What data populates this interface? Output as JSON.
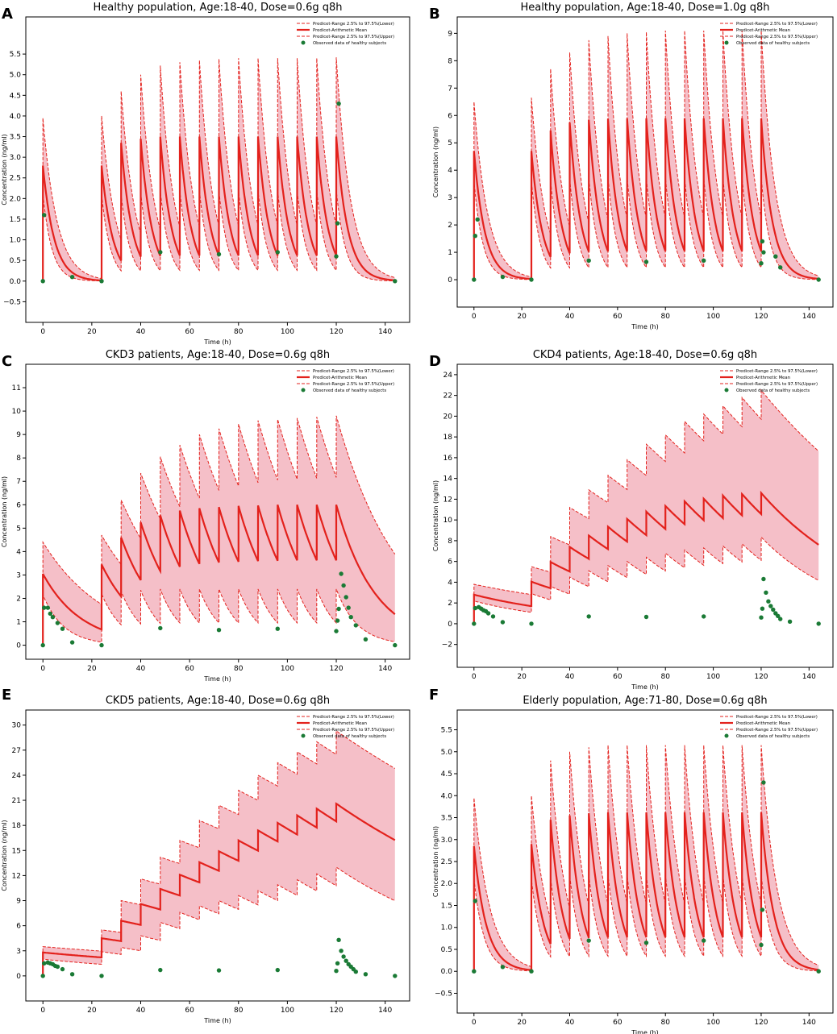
{
  "figure": {
    "series_names": {
      "lower": "Predicet-Range 2.5% to 97.5%(Lower)",
      "mean": "Predicet-Arithmetic Mean",
      "upper": "Predicet-Range 2.5% to 97.5%(Upper)",
      "observed": "Observed data of healthy subjects"
    },
    "colors": {
      "mean": "#e3211c",
      "band": "#f5bfc8",
      "band_edge": "#e3211c",
      "observed": "#1a7a35",
      "axis": "#000000"
    },
    "xlabel": "Time (h)",
    "ylabel": "Concentration (ng/ml)"
  },
  "chart_data": [
    {
      "type": "line",
      "panel": "A",
      "title": "Healthy population, Age:18-40, Dose=0.6g q8h",
      "xlim": [
        -7,
        150
      ],
      "ylim": [
        -1.0,
        6.4
      ],
      "xticks": [
        0,
        20,
        40,
        60,
        80,
        100,
        120,
        140
      ],
      "yticks": [
        -0.5,
        0.0,
        0.5,
        1.0,
        1.5,
        2.0,
        2.5,
        3.0,
        3.5,
        4.0,
        4.5,
        5.0,
        5.5
      ],
      "ytick_labels": [
        "−0.5",
        "0.0",
        "0.5",
        "1.0",
        "1.5",
        "2.0",
        "2.5",
        "3.0",
        "3.5",
        "4.0",
        "4.5",
        "5.0",
        "5.5"
      ],
      "dose_times": [
        0,
        24,
        32,
        40,
        48,
        56,
        64,
        72,
        80,
        88,
        96,
        104,
        112,
        120
      ],
      "mean_peaks": [
        2.8,
        2.8,
        3.35,
        3.45,
        3.5,
        3.5,
        3.5,
        3.5,
        3.5,
        3.5,
        3.5,
        3.5,
        3.5,
        3.5
      ],
      "lower_peaks": [
        2.1,
        2.1,
        2.1,
        2.15,
        2.2,
        2.2,
        2.2,
        2.2,
        2.2,
        2.2,
        2.2,
        2.2,
        2.2,
        2.2
      ],
      "upper_peaks": [
        3.95,
        4.0,
        4.6,
        5.0,
        5.22,
        5.3,
        5.35,
        5.38,
        5.4,
        5.4,
        5.4,
        5.4,
        5.4,
        5.42
      ],
      "mean_half_life": 3.2,
      "lower_half_life": 2.6,
      "upper_half_life": 4.0,
      "observed_x": [
        0,
        0.5,
        12,
        24,
        48,
        72,
        96,
        120,
        120.5,
        121,
        144
      ],
      "observed_y": [
        0.0,
        1.6,
        0.1,
        0.0,
        0.7,
        0.65,
        0.7,
        0.6,
        1.4,
        4.3,
        0.0
      ]
    },
    {
      "type": "line",
      "panel": "B",
      "title": "Healthy population, Age:18-40, Dose=1.0g q8h",
      "xlim": [
        -7,
        150
      ],
      "ylim": [
        -1.0,
        9.6
      ],
      "xticks": [
        0,
        20,
        40,
        60,
        80,
        100,
        120,
        140
      ],
      "yticks": [
        0,
        1,
        2,
        3,
        4,
        5,
        6,
        7,
        8,
        9
      ],
      "ytick_labels": [
        "0",
        "1",
        "2",
        "3",
        "4",
        "5",
        "6",
        "7",
        "8",
        "9"
      ],
      "dose_times": [
        0,
        24,
        32,
        40,
        48,
        56,
        64,
        72,
        80,
        88,
        96,
        104,
        112,
        120
      ],
      "mean_peaks": [
        4.7,
        4.7,
        5.45,
        5.75,
        5.85,
        5.88,
        5.9,
        5.9,
        5.9,
        5.9,
        5.9,
        5.9,
        5.9,
        5.9
      ],
      "lower_peaks": [
        3.6,
        3.6,
        3.65,
        3.7,
        3.75,
        3.75,
        3.75,
        3.75,
        3.75,
        3.75,
        3.75,
        3.75,
        3.75,
        3.75
      ],
      "upper_peaks": [
        6.5,
        6.65,
        7.7,
        8.3,
        8.75,
        8.9,
        9.0,
        9.05,
        9.1,
        9.1,
        9.1,
        9.1,
        9.1,
        9.1
      ],
      "mean_half_life": 3.2,
      "lower_half_life": 2.6,
      "upper_half_life": 4.0,
      "observed_x": [
        0,
        0.5,
        1.5,
        12,
        24,
        48,
        72,
        96,
        120,
        120.5,
        121,
        126,
        128,
        144
      ],
      "observed_y": [
        0.0,
        1.6,
        2.2,
        0.1,
        0.0,
        0.7,
        0.65,
        0.7,
        0.6,
        1.4,
        1.0,
        0.85,
        0.45,
        0.0
      ]
    },
    {
      "type": "line",
      "panel": "C",
      "title": "CKD3 patients, Age:18-40, Dose=0.6g q8h",
      "xlim": [
        -7,
        150
      ],
      "ylim": [
        -0.6,
        12.0
      ],
      "xticks": [
        0,
        20,
        40,
        60,
        80,
        100,
        120,
        140
      ],
      "yticks": [
        0,
        1,
        2,
        3,
        4,
        5,
        6,
        7,
        8,
        9,
        10,
        11
      ],
      "ytick_labels": [
        "0",
        "1",
        "2",
        "3",
        "4",
        "5",
        "6",
        "7",
        "8",
        "9",
        "10",
        "11"
      ],
      "dose_times": [
        0,
        24,
        32,
        40,
        48,
        56,
        64,
        72,
        80,
        88,
        96,
        104,
        112,
        120
      ],
      "mean_peaks": [
        3.05,
        3.45,
        4.6,
        5.25,
        5.55,
        5.75,
        5.85,
        5.9,
        5.95,
        5.97,
        6.0,
        6.0,
        6.0,
        6.0
      ],
      "lower_peaks": [
        2.15,
        2.2,
        2.3,
        2.35,
        2.4,
        2.4,
        2.4,
        2.4,
        2.4,
        2.4,
        2.4,
        2.4,
        2.4,
        2.4
      ],
      "upper_peaks": [
        4.4,
        4.7,
        6.2,
        7.35,
        8.05,
        8.55,
        9.0,
        9.25,
        9.45,
        9.6,
        9.65,
        9.7,
        9.75,
        9.8
      ],
      "mean_half_life": 11,
      "lower_half_life": 6,
      "upper_half_life": 18,
      "observed_x": [
        0,
        0.5,
        2,
        3,
        4,
        6,
        8,
        12,
        24,
        48,
        72,
        96,
        120,
        120.5,
        121,
        122,
        123,
        124,
        125,
        126,
        128,
        132,
        144
      ],
      "observed_y": [
        0.0,
        1.6,
        1.6,
        1.35,
        1.2,
        0.95,
        0.7,
        0.12,
        0.0,
        0.73,
        0.65,
        0.7,
        0.6,
        1.05,
        1.55,
        3.05,
        2.55,
        2.05,
        1.6,
        1.2,
        0.85,
        0.25,
        0.0
      ]
    },
    {
      "type": "line",
      "panel": "D",
      "title": "CKD4 patients, Age:18-40, Dose=0.6g q8h",
      "xlim": [
        -7,
        150
      ],
      "ylim": [
        -4.2,
        25.0
      ],
      "xticks": [
        0,
        20,
        40,
        60,
        80,
        100,
        120,
        140
      ],
      "yticks": [
        -2,
        0,
        2,
        4,
        6,
        8,
        10,
        12,
        14,
        16,
        18,
        20,
        22,
        24
      ],
      "ytick_labels": [
        "−2",
        "0",
        "2",
        "4",
        "6",
        "8",
        "10",
        "12",
        "14",
        "16",
        "18",
        "20",
        "22",
        "24"
      ],
      "dose_times": [
        0,
        24,
        32,
        40,
        48,
        56,
        64,
        72,
        80,
        88,
        96,
        104,
        112,
        120
      ],
      "mean_peaks": [
        2.8,
        4.05,
        5.95,
        7.4,
        8.5,
        9.35,
        10.1,
        10.8,
        11.35,
        11.8,
        12.05,
        12.35,
        12.5,
        12.6
      ],
      "lower_peaks": [
        2.2,
        2.9,
        3.6,
        4.5,
        5.1,
        5.6,
        6.0,
        6.4,
        6.8,
        7.1,
        7.3,
        7.5,
        7.7,
        8.35
      ],
      "upper_peaks": [
        3.8,
        5.5,
        8.4,
        11.2,
        12.9,
        14.3,
        15.8,
        17.3,
        18.2,
        19.5,
        20.2,
        21.0,
        21.8,
        22.5
      ],
      "mean_half_life": 33,
      "lower_half_life": 24,
      "upper_half_life": 55,
      "observed_x": [
        0,
        0.5,
        2,
        3,
        4,
        5,
        6,
        8,
        12,
        24,
        48,
        72,
        96,
        120,
        120.5,
        121,
        122,
        123,
        124,
        125,
        126,
        127,
        128,
        132,
        144
      ],
      "observed_y": [
        0.0,
        1.5,
        1.6,
        1.45,
        1.3,
        1.2,
        1.0,
        0.7,
        0.15,
        0.0,
        0.7,
        0.65,
        0.7,
        0.6,
        1.45,
        4.3,
        3.0,
        2.15,
        1.7,
        1.35,
        1.0,
        0.75,
        0.45,
        0.2,
        0.0
      ]
    },
    {
      "type": "line",
      "panel": "E",
      "title": "CKD5 patients, Age:18-40, Dose=0.6g q8h",
      "xlim": [
        -7,
        150
      ],
      "ylim": [
        -3.0,
        31.8
      ],
      "xticks": [
        0,
        20,
        40,
        60,
        80,
        100,
        120,
        140
      ],
      "yticks": [
        0,
        3,
        6,
        9,
        12,
        15,
        18,
        21,
        24,
        27,
        30
      ],
      "ytick_labels": [
        "0",
        "3",
        "6",
        "9",
        "12",
        "15",
        "18",
        "21",
        "24",
        "27",
        "30"
      ],
      "dose_times": [
        0,
        24,
        32,
        40,
        48,
        56,
        64,
        72,
        80,
        88,
        96,
        104,
        112,
        120
      ],
      "mean_peaks": [
        2.8,
        4.5,
        6.6,
        8.6,
        10.4,
        12.1,
        13.6,
        14.9,
        16.2,
        17.4,
        18.3,
        19.2,
        20.0,
        20.6
      ],
      "lower_peaks": [
        2.0,
        2.9,
        3.4,
        4.8,
        6.4,
        7.6,
        8.4,
        9.0,
        9.6,
        10.2,
        10.9,
        11.5,
        12.2,
        13.0
      ],
      "upper_peaks": [
        3.5,
        5.5,
        9.0,
        11.6,
        14.2,
        16.2,
        18.6,
        20.4,
        22.2,
        24.0,
        25.5,
        26.8,
        28.0,
        29.3
      ],
      "mean_half_life": 70,
      "lower_half_life": 45,
      "upper_half_life": 100,
      "observed_x": [
        0,
        0.5,
        2,
        3,
        4,
        5,
        6,
        8,
        12,
        24,
        48,
        72,
        96,
        120,
        120.5,
        121,
        122,
        123,
        124,
        125,
        126,
        127,
        128,
        132,
        144
      ],
      "observed_y": [
        0.0,
        1.5,
        1.6,
        1.5,
        1.4,
        1.2,
        1.1,
        0.8,
        0.2,
        0.0,
        0.7,
        0.65,
        0.7,
        0.6,
        1.5,
        4.3,
        3.0,
        2.3,
        1.8,
        1.4,
        1.1,
        0.8,
        0.5,
        0.2,
        0.0
      ]
    },
    {
      "type": "line",
      "panel": "F",
      "title": "Elderly population, Age:71-80, Dose=0.6g q8h",
      "xlim": [
        -7,
        150
      ],
      "ylim": [
        -0.95,
        5.95
      ],
      "xticks": [
        0,
        20,
        40,
        60,
        80,
        100,
        120,
        140
      ],
      "yticks": [
        -0.5,
        0.0,
        0.5,
        1.0,
        1.5,
        2.0,
        2.5,
        3.0,
        3.5,
        4.0,
        4.5,
        5.0,
        5.5
      ],
      "ytick_labels": [
        "−0.5",
        "0.0",
        "0.5",
        "1.0",
        "1.5",
        "2.0",
        "2.5",
        "3.0",
        "3.5",
        "4.0",
        "4.5",
        "5.0",
        "5.5"
      ],
      "dose_times": [
        0,
        24,
        32,
        40,
        48,
        56,
        64,
        72,
        80,
        88,
        96,
        104,
        112,
        120
      ],
      "mean_peaks": [
        2.85,
        2.9,
        3.45,
        3.55,
        3.6,
        3.62,
        3.62,
        3.62,
        3.62,
        3.62,
        3.62,
        3.62,
        3.62,
        3.62
      ],
      "lower_peaks": [
        2.1,
        2.1,
        2.15,
        2.2,
        2.2,
        2.2,
        2.2,
        2.2,
        2.2,
        2.2,
        2.2,
        2.2,
        2.2,
        2.2
      ],
      "upper_peaks": [
        3.95,
        4.0,
        4.8,
        5.0,
        5.1,
        5.15,
        5.15,
        5.15,
        5.15,
        5.15,
        5.15,
        5.15,
        5.15,
        5.15
      ],
      "mean_half_life": 3.6,
      "lower_half_life": 3.0,
      "upper_half_life": 4.6,
      "observed_x": [
        0,
        0.5,
        12,
        24,
        48,
        72,
        96,
        120,
        120.5,
        121,
        144
      ],
      "observed_y": [
        0.0,
        1.6,
        0.1,
        0.0,
        0.7,
        0.65,
        0.7,
        0.6,
        1.4,
        4.3,
        0.0
      ]
    }
  ]
}
